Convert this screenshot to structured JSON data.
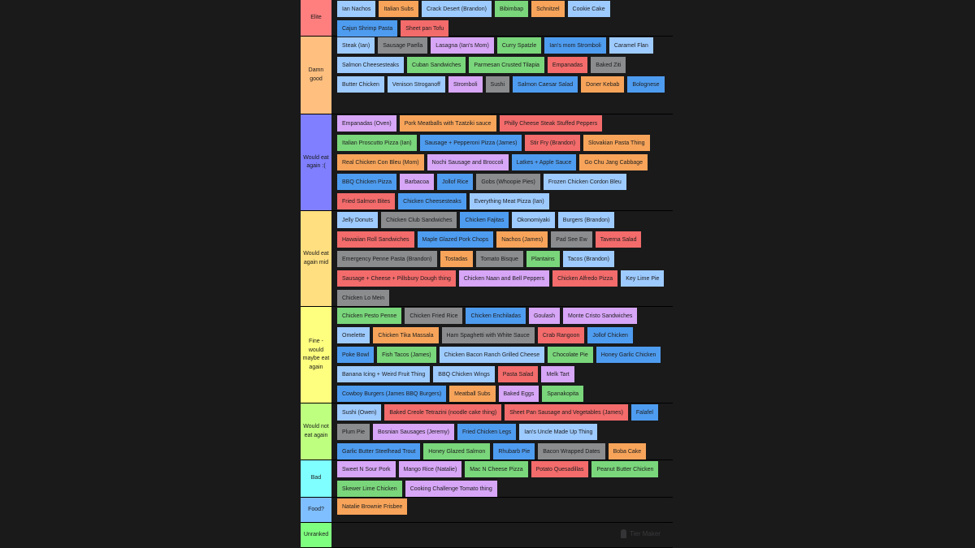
{
  "tiers": [
    {
      "label": "Elite",
      "color": "#ff7f7f",
      "height": 45,
      "items": [
        {
          "text": "Ian Nachos",
          "c": "lblue"
        },
        {
          "text": "Italian Subs",
          "c": "orange"
        },
        {
          "text": "Crack Desert (Brandon)",
          "c": "lblue"
        },
        {
          "text": "Bibimbap",
          "c": "green"
        },
        {
          "text": "Schnitzel",
          "c": "orange"
        },
        {
          "text": "Cookie Cake",
          "c": "lblue"
        },
        {
          "text": "Cajun Shrimp Pasta",
          "c": "blue"
        },
        {
          "text": "Sheet pan Tofu",
          "c": "red"
        }
      ]
    },
    {
      "label": "Damn good",
      "color": "#ffbf7f",
      "height": 96,
      "items": [
        {
          "text": "Steak (Ian)",
          "c": "lblue"
        },
        {
          "text": "Sausage Paella",
          "c": "grey"
        },
        {
          "text": "Lasagna (Ian's Mom)",
          "c": "purple"
        },
        {
          "text": "Curry Spatzle",
          "c": "green"
        },
        {
          "text": "Ian's mom Stromboli",
          "c": "blue"
        },
        {
          "text": "Caramel Flan",
          "c": "lblue"
        },
        {
          "text": "Salmon Cheesesteaks",
          "c": "lblue"
        },
        {
          "text": "Cuban Sandwiches",
          "c": "green"
        },
        {
          "text": "Parmesan Crusted Tilapia",
          "c": "green"
        },
        {
          "text": "Empanadas",
          "c": "red"
        },
        {
          "text": "Baked Ziti",
          "c": "grey"
        },
        {
          "text": "Butter Chicken",
          "c": "lblue"
        },
        {
          "text": "Venison Stroganoff",
          "c": "lblue"
        },
        {
          "text": "Stromboli",
          "c": "purple"
        },
        {
          "text": "Sushi",
          "c": "grey"
        },
        {
          "text": "Salmon Caesar Salad",
          "c": "blue"
        },
        {
          "text": "Doner Kebab",
          "c": "orange"
        },
        {
          "text": "Bolognese",
          "c": "blue"
        }
      ]
    },
    {
      "label": "Would eat again :(",
      "color": "#7f7fff",
      "height": 119,
      "items": [
        {
          "text": "Empanadas (Oven)",
          "c": "purple"
        },
        {
          "text": "Pork Meatballs with Tzatziki sauce",
          "c": "orange"
        },
        {
          "text": "Philly Cheese Steak Stuffed Peppers",
          "c": "red"
        },
        {
          "text": "Italian Proscutto Pizza (Ian)",
          "c": "green"
        },
        {
          "text": "Sausage + Pepperoni Pizza (James)",
          "c": "blue"
        },
        {
          "text": "Stir Fry (Brandon)",
          "c": "red"
        },
        {
          "text": "Slovakian Pasta Thing",
          "c": "orange"
        },
        {
          "text": "Real Chicken Con Bleu (Mom)",
          "c": "orange"
        },
        {
          "text": "Nochi Sausage and Broccoli",
          "c": "purple"
        },
        {
          "text": "Latkes + Apple Sauce",
          "c": "blue"
        },
        {
          "text": "Go Chu Jang Cabbage",
          "c": "orange"
        },
        {
          "text": "BBQ Chicken Pizza",
          "c": "blue"
        },
        {
          "text": "Barbacoa",
          "c": "purple"
        },
        {
          "text": "Jollof Rice",
          "c": "blue"
        },
        {
          "text": "Gobs (Whoopie Pies)",
          "c": "grey"
        },
        {
          "text": "Frozen Chicken Cordon Bleu",
          "c": "lblue"
        },
        {
          "text": "Fried Salmon Bites",
          "c": "red"
        },
        {
          "text": "Chicken Cheesesteaks",
          "c": "blue"
        },
        {
          "text": "Everything Meat Pizza (Ian)",
          "c": "lblue"
        }
      ]
    },
    {
      "label": "Would eat again mid",
      "color": "#ffdf7f",
      "height": 118,
      "items": [
        {
          "text": "Jelly Donuts",
          "c": "lblue"
        },
        {
          "text": "Chicken Club Sandwiches",
          "c": "grey"
        },
        {
          "text": "Chicken Fajitas",
          "c": "blue"
        },
        {
          "text": "Okonomiyaki",
          "c": "lblue"
        },
        {
          "text": "Burgers (Brandon)",
          "c": "lblue"
        },
        {
          "text": "Hawaiian Roll Sandwiches",
          "c": "red"
        },
        {
          "text": "Maple Glazed Pork Chops",
          "c": "blue"
        },
        {
          "text": "Nachos (James)",
          "c": "orange"
        },
        {
          "text": "Pad See Ew",
          "c": "grey"
        },
        {
          "text": "Taverna Salad",
          "c": "red"
        },
        {
          "text": "Emergency Penne Pasta (Brandon)",
          "c": "grey"
        },
        {
          "text": "Tostadas",
          "c": "orange"
        },
        {
          "text": "Tomato Bisque",
          "c": "grey"
        },
        {
          "text": "Plantains",
          "c": "green"
        },
        {
          "text": "Tacos (Brandon)",
          "c": "lblue"
        },
        {
          "text": "Sausage + Cheese + Pillsbury Dough thing",
          "c": "red"
        },
        {
          "text": "Chicken Naan and Bell Peppers",
          "c": "purple"
        },
        {
          "text": "Chicken Alfredo Pizza",
          "c": "red"
        },
        {
          "text": "Key Lime Pie",
          "c": "lblue"
        },
        {
          "text": "Chicken Lo Mein",
          "c": "grey"
        }
      ]
    },
    {
      "label": "Fine - would maybe eat again",
      "color": "#ffff7f",
      "height": 119,
      "items": [
        {
          "text": "Chicken Pesto Penne",
          "c": "green"
        },
        {
          "text": "Chicken Fried Rice",
          "c": "grey"
        },
        {
          "text": "Chicken Enchiladas",
          "c": "blue"
        },
        {
          "text": "Goulash",
          "c": "purple"
        },
        {
          "text": "Monte Cristo Sandwiches",
          "c": "purple"
        },
        {
          "text": "Omelette",
          "c": "lblue"
        },
        {
          "text": "Chicken Tika Massala",
          "c": "orange"
        },
        {
          "text": "Ham Spaghetti with White Sauce",
          "c": "grey"
        },
        {
          "text": "Crab Rangoon",
          "c": "red"
        },
        {
          "text": "Jollof Chicken",
          "c": "blue"
        },
        {
          "text": "Poke Bowl",
          "c": "blue"
        },
        {
          "text": "Fish Tacos (James)",
          "c": "green"
        },
        {
          "text": "Chicken Bacon Ranch Grilled Cheese",
          "c": "lblue"
        },
        {
          "text": "Chocolate Pie",
          "c": "green"
        },
        {
          "text": "Honey Garlic Chicken",
          "c": "blue"
        },
        {
          "text": "Banana Icing + Weird Fruit Thing",
          "c": "lblue"
        },
        {
          "text": "BBQ Chicken Wings",
          "c": "lblue"
        },
        {
          "text": "Pasta Salad",
          "c": "red"
        },
        {
          "text": "Melk Tart",
          "c": "purple"
        },
        {
          "text": "Cowboy Burgers (James BBQ Burgers)",
          "c": "blue"
        },
        {
          "text": "Meatball Subs",
          "c": "orange"
        },
        {
          "text": "Baked Eggs",
          "c": "purple"
        },
        {
          "text": "Spanakopita",
          "c": "green"
        }
      ]
    },
    {
      "label": "Would not eat again",
      "color": "#bfff7f",
      "height": 70,
      "items": [
        {
          "text": "Sushi (Owen)",
          "c": "lblue"
        },
        {
          "text": "Baked Creole Tetrazini (noodle cake thing)",
          "c": "red"
        },
        {
          "text": "Sheet Pan Sausage and Vegetables (James)",
          "c": "red"
        },
        {
          "text": "Falafel",
          "c": "blue"
        },
        {
          "text": "Plum Pie",
          "c": "grey"
        },
        {
          "text": "Bosnian Sausages (Jeremy)",
          "c": "purple"
        },
        {
          "text": "Fried Chicken Legs",
          "c": "blue"
        },
        {
          "text": "Ian's Uncle Made Up Thing",
          "c": "lblue"
        },
        {
          "text": "Garlic Butter Steelhead Trout",
          "c": "blue"
        },
        {
          "text": "Honey Glazed Salmon",
          "c": "green"
        },
        {
          "text": "Rhubarb Pie",
          "c": "blue"
        },
        {
          "text": "Bacon Wrapped Dates",
          "c": "grey"
        },
        {
          "text": "Boba Cake",
          "c": "orange"
        }
      ]
    },
    {
      "label": "Bad",
      "color": "#7fffff",
      "height": 46,
      "items": [
        {
          "text": "Sweet N Sour Pork",
          "c": "purple"
        },
        {
          "text": "Mango Rice (Natalie)",
          "c": "purple"
        },
        {
          "text": "Mac N Cheese Pizza",
          "c": "green"
        },
        {
          "text": "Potato Quesadillas",
          "c": "red"
        },
        {
          "text": "Peanut Butter Chicken",
          "c": "green"
        },
        {
          "text": "Skewer Lime Chicken",
          "c": "green"
        },
        {
          "text": "Cooking Challenge Tomato thing",
          "c": "purple"
        }
      ]
    },
    {
      "label": "Food?",
      "color": "#7fbfff",
      "height": 31,
      "items": [
        {
          "text": "Natalie Brownie Frisbee",
          "c": "orange"
        }
      ]
    },
    {
      "label": "Unranked",
      "color": "#7fff7f",
      "height": 31,
      "items": []
    }
  ],
  "watermark": "Tier Maker",
  "watermark_icon": "tiermaker-logo-icon"
}
